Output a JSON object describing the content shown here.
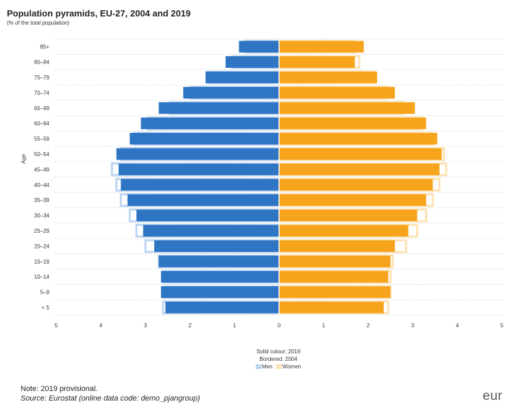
{
  "title": "Population pyramids, EU-27, 2004 and 2019",
  "subtitle": "(% of the total population)",
  "legend": {
    "line1": "Solid colour: 2019",
    "line2": "Bordered: 2004",
    "men": "Men",
    "women": "Women"
  },
  "note": "Note: 2019 provisional.",
  "source": "Source: Eurostat (online data code: demo_pjangroup)",
  "logo": "eur",
  "colors": {
    "men_2019": "#2e75c4",
    "women_2019": "#f7a41d",
    "men_2004_border": "#bcd6f2",
    "women_2004_border": "#fde3b4",
    "grid": "#cfcfcf",
    "axis": "#ffffff"
  },
  "chart_data": {
    "type": "bar",
    "orientation": "horizontal",
    "ylabel": "Age",
    "xlim": [
      -5,
      5
    ],
    "x_ticks": [
      "5",
      "4",
      "3",
      "2",
      "1",
      "0",
      "1",
      "2",
      "3",
      "4",
      "5"
    ],
    "categories": [
      "85+",
      "80–84",
      "75–79",
      "70–74",
      "65–69",
      "60–64",
      "55–59",
      "50–54",
      "45–49",
      "40–44",
      "35–39",
      "30–34",
      "25–29",
      "20–24",
      "15–19",
      "10–14",
      "5–9",
      "< 5"
    ],
    "series": [
      {
        "name": "Men",
        "year": "2019",
        "values": [
          0.9,
          1.2,
          1.65,
          2.15,
          2.7,
          3.1,
          3.35,
          3.65,
          3.6,
          3.55,
          3.4,
          3.2,
          3.05,
          2.8,
          2.7,
          2.65,
          2.65,
          2.55
        ]
      },
      {
        "name": "Men",
        "year": "2004",
        "values": [
          0.75,
          1.05,
          1.6,
          2.0,
          2.45,
          2.95,
          3.25,
          3.55,
          3.75,
          3.65,
          3.55,
          3.35,
          3.2,
          3.0,
          2.7,
          2.6,
          2.6,
          2.6
        ]
      },
      {
        "name": "Women",
        "year": "2019",
        "values": [
          1.9,
          1.7,
          2.2,
          2.6,
          3.05,
          3.3,
          3.55,
          3.65,
          3.6,
          3.45,
          3.3,
          3.1,
          2.9,
          2.6,
          2.5,
          2.45,
          2.5,
          2.35
        ]
      },
      {
        "name": "Women",
        "year": "2004",
        "values": [
          1.7,
          1.8,
          2.15,
          2.45,
          2.8,
          3.2,
          3.45,
          3.7,
          3.75,
          3.6,
          3.45,
          3.3,
          3.1,
          2.85,
          2.55,
          2.5,
          2.5,
          2.45
        ]
      }
    ],
    "grid": true,
    "legend_position": "bottom"
  }
}
